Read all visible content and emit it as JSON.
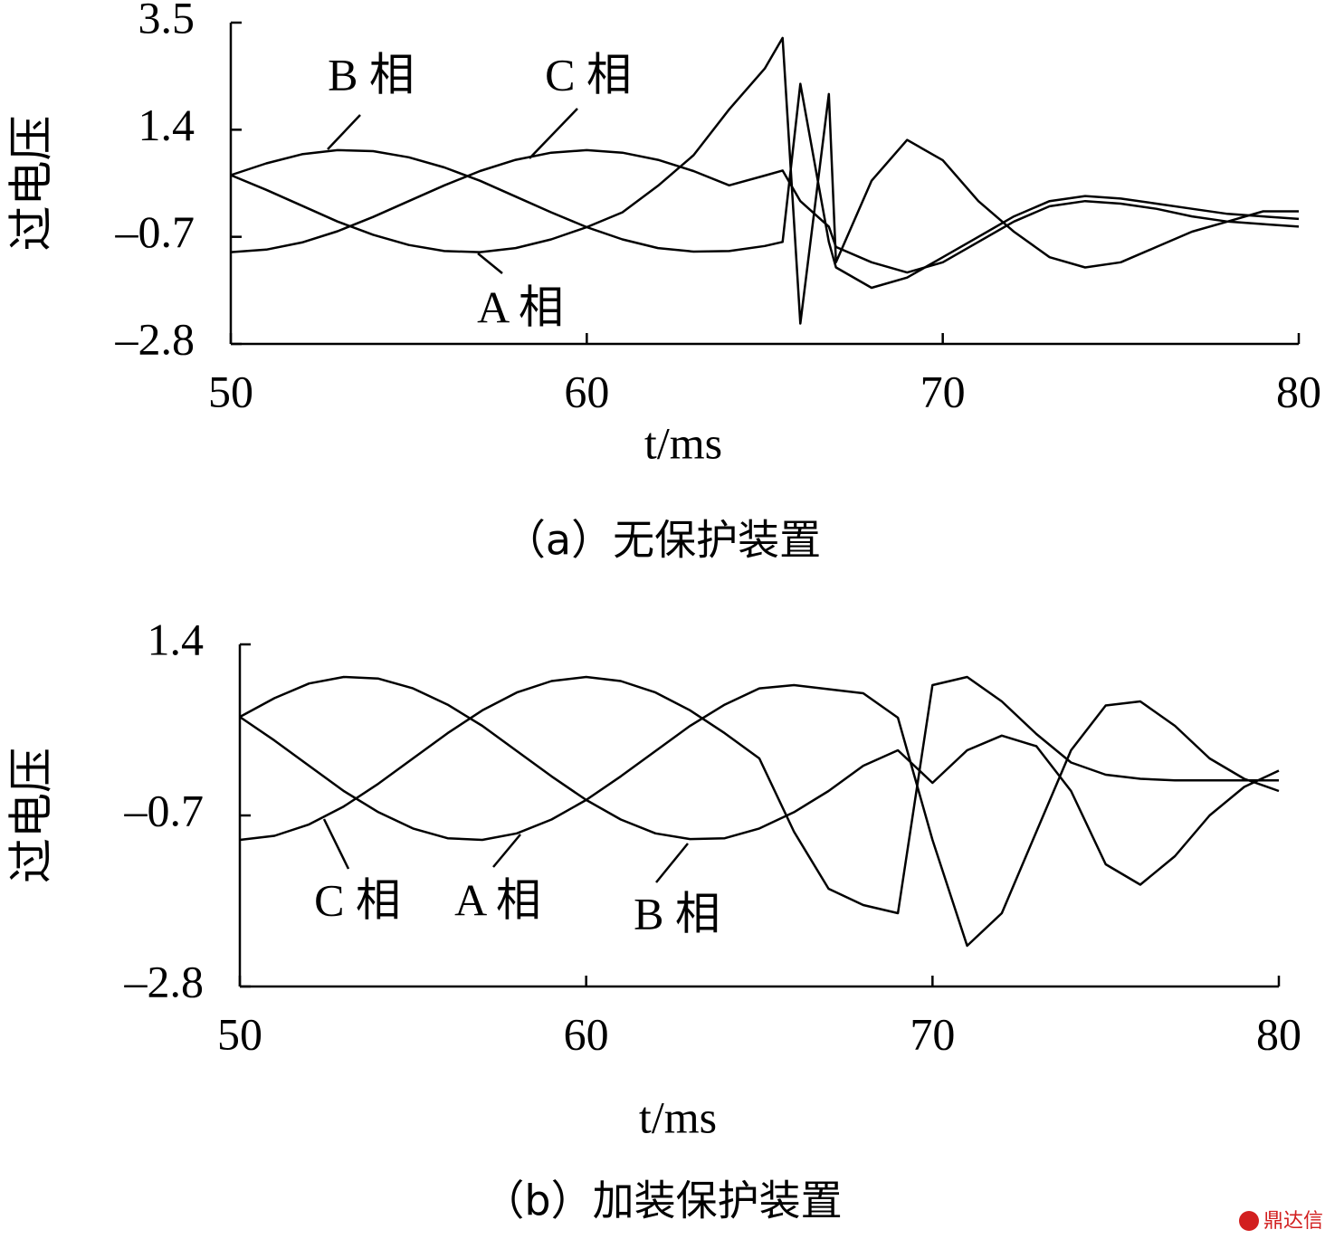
{
  "chart_data": [
    {
      "type": "line",
      "caption": "（a）无保护装置",
      "x_label": "t/ms",
      "y_label": "过电压",
      "x": [
        50,
        51,
        52,
        53,
        54,
        55,
        56,
        57,
        58,
        59,
        60,
        61,
        62,
        63,
        64,
        65,
        65.5,
        66,
        66.8,
        67,
        68,
        69,
        70,
        71,
        72,
        73,
        74,
        75,
        76,
        77,
        78,
        79,
        80
      ],
      "xlim": [
        50,
        80
      ],
      "xticks": [
        50,
        60,
        70,
        80
      ],
      "ylim": [
        -2.8,
        3.5
      ],
      "yticks": [
        3.5,
        1.4,
        {
          "value": -0.7,
          "label": "–0.7"
        },
        {
          "value": -2.8,
          "label": "–2.8"
        }
      ],
      "grid": false,
      "series": [
        {
          "name": "A 相",
          "color": "#000000",
          "values": [
            0.51,
            0.22,
            -0.09,
            -0.4,
            -0.66,
            -0.86,
            -0.98,
            -1.0,
            -0.92,
            -0.75,
            -0.51,
            -0.22,
            0.3,
            0.9,
            1.8,
            2.6,
            3.2,
            -2.4,
            2.1,
            -1.2,
            0.4,
            1.2,
            0.8,
            0.0,
            -0.6,
            -1.1,
            -1.3,
            -1.2,
            -0.9,
            -0.6,
            -0.4,
            -0.2,
            -0.2
          ]
        },
        {
          "name": "B 相",
          "color": "#000000",
          "values": [
            0.51,
            0.74,
            0.92,
            1.0,
            0.98,
            0.86,
            0.66,
            0.4,
            0.09,
            -0.22,
            -0.51,
            -0.75,
            -0.92,
            -0.99,
            -0.98,
            -0.88,
            -0.8,
            2.3,
            -0.8,
            -1.3,
            -1.7,
            -1.5,
            -1.1,
            -0.7,
            -0.3,
            0.0,
            0.1,
            0.05,
            -0.05,
            -0.15,
            -0.25,
            -0.3,
            -0.35
          ]
        },
        {
          "name": "C 相",
          "color": "#000000",
          "values": [
            -1.0,
            -0.95,
            -0.81,
            -0.59,
            -0.31,
            0.0,
            0.31,
            0.59,
            0.81,
            0.95,
            1.0,
            0.95,
            0.81,
            0.59,
            0.31,
            0.5,
            0.6,
            0.0,
            -0.5,
            -0.9,
            -1.2,
            -1.4,
            -1.2,
            -0.8,
            -0.4,
            -0.1,
            0.0,
            -0.05,
            -0.15,
            -0.3,
            -0.4,
            -0.45,
            -0.5
          ]
        }
      ]
    },
    {
      "type": "line",
      "caption": "（b）加装保护装置",
      "x_label": "t/ms",
      "y_label": "过电压",
      "x": [
        50,
        51,
        52,
        53,
        54,
        55,
        56,
        57,
        58,
        59,
        60,
        61,
        62,
        63,
        64,
        65,
        66,
        67,
        68,
        69,
        70,
        71,
        72,
        73,
        74,
        75,
        76,
        77,
        78,
        79,
        80
      ],
      "xlim": [
        50,
        80
      ],
      "xticks": [
        50,
        60,
        70,
        80
      ],
      "ylim": [
        -2.8,
        1.4
      ],
      "yticks": [
        1.4,
        {
          "value": -0.7,
          "label": "–0.7"
        },
        {
          "value": -2.8,
          "label": "–2.8"
        }
      ],
      "grid": false,
      "series": [
        {
          "name": "A 相",
          "color": "#000000",
          "values": [
            0.51,
            0.22,
            -0.09,
            -0.4,
            -0.66,
            -0.86,
            -0.98,
            -1.0,
            -0.92,
            -0.75,
            -0.51,
            -0.22,
            0.09,
            0.4,
            0.66,
            0.86,
            0.9,
            0.85,
            0.8,
            0.5,
            -1.0,
            -2.3,
            -1.9,
            -0.9,
            0.1,
            0.65,
            0.7,
            0.4,
            0.0,
            -0.25,
            -0.4
          ]
        },
        {
          "name": "B 相",
          "color": "#000000",
          "values": [
            0.51,
            0.74,
            0.92,
            1.0,
            0.98,
            0.86,
            0.66,
            0.4,
            0.09,
            -0.22,
            -0.51,
            -0.75,
            -0.92,
            -0.99,
            -0.98,
            -0.86,
            -0.66,
            -0.4,
            -0.09,
            0.1,
            -0.3,
            0.1,
            0.28,
            0.15,
            -0.4,
            -1.3,
            -1.55,
            -1.2,
            -0.7,
            -0.35,
            -0.15
          ]
        },
        {
          "name": "C 相",
          "color": "#000000",
          "values": [
            -1.0,
            -0.95,
            -0.81,
            -0.59,
            -0.31,
            0.0,
            0.31,
            0.59,
            0.81,
            0.95,
            1.0,
            0.95,
            0.81,
            0.59,
            0.31,
            0.0,
            -0.9,
            -1.6,
            -1.8,
            -1.9,
            0.9,
            1.0,
            0.7,
            0.3,
            -0.05,
            -0.2,
            -0.25,
            -0.27,
            -0.27,
            -0.27,
            -0.27
          ]
        }
      ]
    }
  ],
  "watermark": "鼎达信"
}
